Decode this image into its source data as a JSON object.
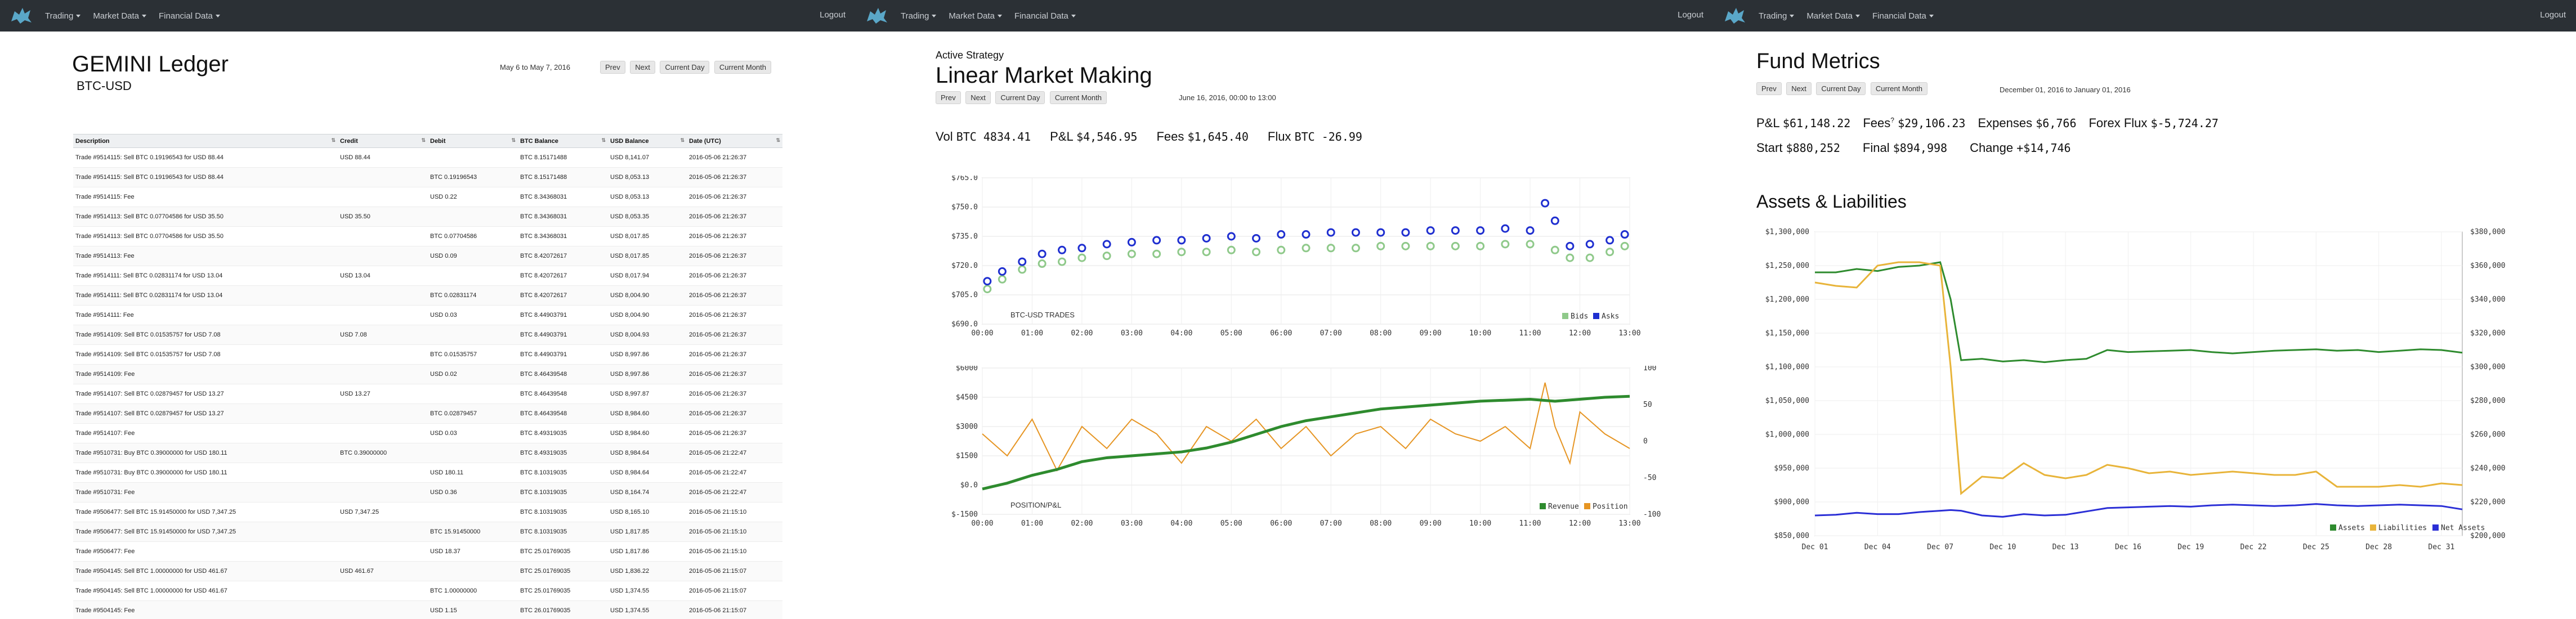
{
  "nav": {
    "trading": "Trading",
    "market_data": "Market Data",
    "financial_data": "Financial Data",
    "logout": "Logout"
  },
  "ledger_page": {
    "title": "GEMINI Ledger",
    "subtitle": "BTC-USD",
    "date_range": "May 6 to May 7, 2016",
    "buttons": {
      "prev": "Prev",
      "next": "Next",
      "current_day": "Current Day",
      "current_month": "Current Month"
    },
    "columns": [
      "Description",
      "Credit",
      "Debit",
      "BTC Balance",
      "USD Balance",
      "Date (UTC)"
    ],
    "rows": [
      [
        "Trade #9514115: Sell BTC 0.19196543 for USD 88.44",
        "USD 88.44",
        "",
        "BTC 8.15171488",
        "USD 8,141.07",
        "2016-05-06 21:26:37"
      ],
      [
        "Trade #9514115: Sell BTC 0.19196543 for USD 88.44",
        "",
        "BTC 0.19196543",
        "BTC 8.15171488",
        "USD 8,053.13",
        "2016-05-06 21:26:37"
      ],
      [
        "Trade #9514115: Fee",
        "",
        "USD 0.22",
        "BTC 8.34368031",
        "USD 8,053.13",
        "2016-05-06 21:26:37"
      ],
      [
        "Trade #9514113: Sell BTC 0.07704586 for USD 35.50",
        "USD 35.50",
        "",
        "BTC 8.34368031",
        "USD 8,053.35",
        "2016-05-06 21:26:37"
      ],
      [
        "Trade #9514113: Sell BTC 0.07704586 for USD 35.50",
        "",
        "BTC 0.07704586",
        "BTC 8.34368031",
        "USD 8,017.85",
        "2016-05-06 21:26:37"
      ],
      [
        "Trade #9514113: Fee",
        "",
        "USD 0.09",
        "BTC 8.42072617",
        "USD 8,017.85",
        "2016-05-06 21:26:37"
      ],
      [
        "Trade #9514111: Sell BTC 0.02831174 for USD 13.04",
        "USD 13.04",
        "",
        "BTC 8.42072617",
        "USD 8,017.94",
        "2016-05-06 21:26:37"
      ],
      [
        "Trade #9514111: Sell BTC 0.02831174 for USD 13.04",
        "",
        "BTC 0.02831174",
        "BTC 8.42072617",
        "USD 8,004.90",
        "2016-05-06 21:26:37"
      ],
      [
        "Trade #9514111: Fee",
        "",
        "USD 0.03",
        "BTC 8.44903791",
        "USD 8,004.90",
        "2016-05-06 21:26:37"
      ],
      [
        "Trade #9514109: Sell BTC 0.01535757 for USD 7.08",
        "USD 7.08",
        "",
        "BTC 8.44903791",
        "USD 8,004.93",
        "2016-05-06 21:26:37"
      ],
      [
        "Trade #9514109: Sell BTC 0.01535757 for USD 7.08",
        "",
        "BTC 0.01535757",
        "BTC 8.44903791",
        "USD 8,997.86",
        "2016-05-06 21:26:37"
      ],
      [
        "Trade #9514109: Fee",
        "",
        "USD 0.02",
        "BTC 8.46439548",
        "USD 8,997.86",
        "2016-05-06 21:26:37"
      ],
      [
        "Trade #9514107: Sell BTC 0.02879457 for USD 13.27",
        "USD 13.27",
        "",
        "BTC 8.46439548",
        "USD 8,997.87",
        "2016-05-06 21:26:37"
      ],
      [
        "Trade #9514107: Sell BTC 0.02879457 for USD 13.27",
        "",
        "BTC 0.02879457",
        "BTC 8.46439548",
        "USD 8,984.60",
        "2016-05-06 21:26:37"
      ],
      [
        "Trade #9514107: Fee",
        "",
        "USD 0.03",
        "BTC 8.49319035",
        "USD 8,984.60",
        "2016-05-06 21:26:37"
      ],
      [
        "Trade #9510731: Buy BTC 0.39000000 for USD 180.11",
        "BTC 0.39000000",
        "",
        "BTC 8.49319035",
        "USD 8,984.64",
        "2016-05-06 21:22:47"
      ],
      [
        "Trade #9510731: Buy BTC 0.39000000 for USD 180.11",
        "",
        "USD 180.11",
        "BTC 8.10319035",
        "USD 8,984.64",
        "2016-05-06 21:22:47"
      ],
      [
        "Trade #9510731: Fee",
        "",
        "USD 0.36",
        "BTC 8.10319035",
        "USD 8,164.74",
        "2016-05-06 21:22:47"
      ],
      [
        "Trade #9506477: Sell BTC 15.91450000 for USD 7,347.25",
        "USD 7,347.25",
        "",
        "BTC 8.10319035",
        "USD 8,165.10",
        "2016-05-06 21:15:10"
      ],
      [
        "Trade #9506477: Sell BTC 15.91450000 for USD 7,347.25",
        "",
        "BTC 15.91450000",
        "BTC 8.10319035",
        "USD 1,817.85",
        "2016-05-06 21:15:10"
      ],
      [
        "Trade #9506477: Fee",
        "",
        "USD 18.37",
        "BTC 25.01769035",
        "USD 1,817.86",
        "2016-05-06 21:15:10"
      ],
      [
        "Trade #9504145: Sell BTC 1.00000000 for USD 461.67",
        "USD 461.67",
        "",
        "BTC 25.01769035",
        "USD 1,836.22",
        "2016-05-06 21:15:07"
      ],
      [
        "Trade #9504145: Sell BTC 1.00000000 for USD 461.67",
        "",
        "BTC 1.00000000",
        "BTC 25.01769035",
        "USD 1,374.55",
        "2016-05-06 21:15:07"
      ],
      [
        "Trade #9504145: Fee",
        "",
        "USD 1.15",
        "BTC 26.01769035",
        "USD 1,374.55",
        "2016-05-06 21:15:07"
      ]
    ]
  },
  "strategy_page": {
    "kicker": "Active Strategy",
    "title": "Linear Market Making",
    "buttons": {
      "prev": "Prev",
      "next": "Next",
      "current_day": "Current Day",
      "current_month": "Current Month"
    },
    "date": "June 16, 2016, 00:00 to 13:00",
    "stats": [
      {
        "label": "Vol",
        "value": "BTC 4834.41"
      },
      {
        "label": "P&L",
        "value": "$4,546.95"
      },
      {
        "label": "Fees",
        "value": "$1,645.40"
      },
      {
        "label": "Flux",
        "value": "BTC -26.99"
      }
    ]
  },
  "fund_page": {
    "title": "Fund Metrics",
    "buttons": {
      "prev": "Prev",
      "next": "Next",
      "current_day": "Current Day",
      "current_month": "Current Month"
    },
    "date": "December 01, 2016 to January 01, 2016",
    "stats_row1": [
      {
        "label": "P&L",
        "value": "$61,148.22"
      },
      {
        "label": "Fees",
        "sup": "?",
        "value": "$29,106.23"
      },
      {
        "label": "Expenses",
        "value": "$6,766"
      },
      {
        "label": "Forex Flux",
        "value": "$-5,724.27"
      }
    ],
    "stats_row2": [
      {
        "label": "Start",
        "value": "$880,252"
      },
      {
        "label": "Final",
        "value": "$894,998"
      },
      {
        "label": "Change",
        "value": "+$14,746"
      }
    ],
    "section_title": "Assets & Liabilities"
  },
  "chart_data": [
    {
      "type": "scatter",
      "watermark": "BTC-USD TRADES",
      "x_ticks": [
        "00:00",
        "01:00",
        "02:00",
        "03:00",
        "04:00",
        "05:00",
        "06:00",
        "07:00",
        "08:00",
        "09:00",
        "10:00",
        "11:00",
        "12:00",
        "13:00"
      ],
      "y_ticks": [
        "$690.0",
        "$705.0",
        "$720.0",
        "$735.0",
        "$750.0",
        "$765.0"
      ],
      "ylim": [
        690,
        765
      ],
      "legend": [
        "Bids",
        "Asks"
      ],
      "legend_position": "bottom-right",
      "series": [
        {
          "name": "Bids",
          "color": "#8fc98a",
          "x": [
            0.1,
            0.4,
            0.8,
            1.2,
            1.6,
            2.0,
            2.5,
            3.0,
            3.5,
            4.0,
            4.5,
            5.0,
            5.5,
            6.0,
            6.5,
            7.0,
            7.5,
            8.0,
            8.5,
            9.0,
            9.5,
            10.0,
            10.5,
            11.0,
            11.5,
            11.8,
            12.2,
            12.6,
            12.9
          ],
          "y": [
            708,
            713,
            718,
            721,
            722,
            724,
            725,
            726,
            726,
            727,
            727,
            728,
            727,
            728,
            729,
            729,
            729,
            730,
            730,
            730,
            730,
            730,
            731,
            731,
            728,
            724,
            724,
            727,
            730
          ]
        },
        {
          "name": "Asks",
          "color": "#1f2fd0",
          "x": [
            0.1,
            0.4,
            0.8,
            1.2,
            1.6,
            2.0,
            2.5,
            3.0,
            3.5,
            4.0,
            4.5,
            5.0,
            5.5,
            6.0,
            6.5,
            7.0,
            7.5,
            8.0,
            8.5,
            9.0,
            9.5,
            10.0,
            10.5,
            11.0,
            11.3,
            11.5,
            11.8,
            12.2,
            12.6,
            12.9
          ],
          "y": [
            712,
            717,
            722,
            726,
            728,
            729,
            731,
            732,
            733,
            733,
            734,
            735,
            734,
            736,
            736,
            737,
            737,
            737,
            737,
            738,
            738,
            738,
            739,
            738,
            752,
            743,
            730,
            731,
            733,
            736
          ]
        }
      ]
    },
    {
      "type": "line",
      "watermark": "POSITION/P&L",
      "x_ticks": [
        "00:00",
        "01:00",
        "02:00",
        "03:00",
        "04:00",
        "05:00",
        "06:00",
        "07:00",
        "08:00",
        "09:00",
        "10:00",
        "11:00",
        "12:00",
        "13:00"
      ],
      "y_ticks_left": [
        "$-1500",
        "$0.0",
        "$1500",
        "$3000",
        "$4500",
        "$6000"
      ],
      "y_ticks_right": [
        "-100",
        "-50",
        "0",
        "50",
        "100"
      ],
      "ylim_left": [
        -1500,
        6000
      ],
      "ylim_right": [
        -100,
        100
      ],
      "legend": [
        "Revenue",
        "Position"
      ],
      "legend_position": "bottom-right",
      "series": [
        {
          "name": "Revenue",
          "color": "#2e8b2e",
          "axis": "left",
          "x": [
            0,
            0.5,
            1,
            1.5,
            2,
            2.5,
            3,
            3.5,
            4,
            4.5,
            5,
            5.5,
            6,
            6.5,
            7,
            7.5,
            8,
            8.5,
            9,
            9.5,
            10,
            10.5,
            11,
            11.5,
            12,
            12.5,
            13
          ],
          "y": [
            -200,
            100,
            500,
            800,
            1200,
            1400,
            1500,
            1600,
            1700,
            1900,
            2200,
            2600,
            3000,
            3300,
            3500,
            3700,
            3900,
            4000,
            4100,
            4200,
            4300,
            4350,
            4400,
            4300,
            4400,
            4500,
            4550
          ]
        },
        {
          "name": "Position",
          "color": "#e69523",
          "axis": "right",
          "x": [
            0,
            0.5,
            1,
            1.5,
            2,
            2.5,
            3,
            3.5,
            4,
            4.5,
            5,
            5.5,
            6,
            6.5,
            7,
            7.5,
            8,
            8.5,
            9,
            9.5,
            10,
            10.5,
            11,
            11.3,
            11.5,
            11.8,
            12,
            12.5,
            13
          ],
          "y": [
            10,
            -20,
            30,
            -40,
            20,
            -10,
            30,
            10,
            -30,
            20,
            0,
            30,
            -10,
            20,
            -20,
            10,
            20,
            -10,
            30,
            10,
            0,
            20,
            -10,
            80,
            20,
            -30,
            40,
            10,
            -10
          ]
        }
      ]
    },
    {
      "type": "line",
      "x_ticks": [
        "Dec 01",
        "Dec 04",
        "Dec 07",
        "Dec 10",
        "Dec 13",
        "Dec 16",
        "Dec 19",
        "Dec 22",
        "Dec 25",
        "Dec 28",
        "Dec 31"
      ],
      "y_ticks_left": [
        "$850,000",
        "$900,000",
        "$950,000",
        "$1,000,000",
        "$1,050,000",
        "$1,100,000",
        "$1,150,000",
        "$1,200,000",
        "$1,250,000",
        "$1,300,000"
      ],
      "y_ticks_right": [
        "$200,000",
        "$220,000",
        "$240,000",
        "$260,000",
        "$280,000",
        "$300,000",
        "$320,000",
        "$340,000",
        "$360,000",
        "$380,000"
      ],
      "ylim_left": [
        850000,
        1300000
      ],
      "ylim_right": [
        200000,
        380000
      ],
      "legend": [
        "Assets",
        "Liabilities",
        "Net Assets"
      ],
      "legend_position": "bottom-right",
      "series": [
        {
          "name": "Assets",
          "color": "#2e8b2e",
          "axis": "left",
          "x": [
            1,
            2,
            3,
            4,
            5,
            6,
            7,
            7.5,
            8,
            9,
            10,
            11,
            12,
            13,
            14,
            15,
            16,
            17,
            18,
            19,
            20,
            21,
            22,
            23,
            24,
            25,
            26,
            27,
            28,
            29,
            30,
            31,
            32
          ],
          "y": [
            1240000,
            1240000,
            1245000,
            1242000,
            1248000,
            1250000,
            1255000,
            1200000,
            1110000,
            1112000,
            1108000,
            1110000,
            1107000,
            1110000,
            1112000,
            1125000,
            1122000,
            1123000,
            1124000,
            1125000,
            1122000,
            1120000,
            1122000,
            1124000,
            1125000,
            1126000,
            1124000,
            1125000,
            1122000,
            1124000,
            1126000,
            1125000,
            1121000
          ]
        },
        {
          "name": "Liabilities",
          "color": "#e8b43a",
          "axis": "right",
          "x": [
            1,
            2,
            3,
            4,
            5,
            6,
            7,
            7.5,
            8,
            9,
            10,
            11,
            12,
            13,
            14,
            15,
            16,
            17,
            18,
            19,
            20,
            21,
            22,
            23,
            24,
            25,
            26,
            27,
            28,
            29,
            30,
            31,
            32
          ],
          "y": [
            350000,
            348000,
            347000,
            360000,
            362000,
            362000,
            360000,
            300000,
            225000,
            235000,
            234000,
            243000,
            236000,
            234000,
            236000,
            242000,
            240000,
            237000,
            238000,
            236000,
            237000,
            238000,
            237000,
            236000,
            236000,
            238000,
            229000,
            229000,
            229000,
            230000,
            229000,
            231000,
            230000
          ]
        },
        {
          "name": "Net Assets",
          "color": "#2b2fd6",
          "axis": "left",
          "x": [
            1,
            2,
            3,
            4,
            5,
            6,
            7,
            7.5,
            8,
            9,
            10,
            11,
            12,
            13,
            14,
            15,
            16,
            17,
            18,
            19,
            20,
            21,
            22,
            23,
            24,
            25,
            26,
            27,
            28,
            29,
            30,
            31,
            32
          ],
          "y": [
            880000,
            881000,
            884000,
            882000,
            882000,
            885000,
            887000,
            888000,
            887000,
            880000,
            878000,
            882000,
            880000,
            881000,
            886000,
            891000,
            892000,
            893000,
            894000,
            893000,
            895000,
            896000,
            895000,
            894000,
            895000,
            897000,
            895000,
            894000,
            895000,
            896000,
            895000,
            894000,
            889000
          ]
        }
      ]
    }
  ]
}
